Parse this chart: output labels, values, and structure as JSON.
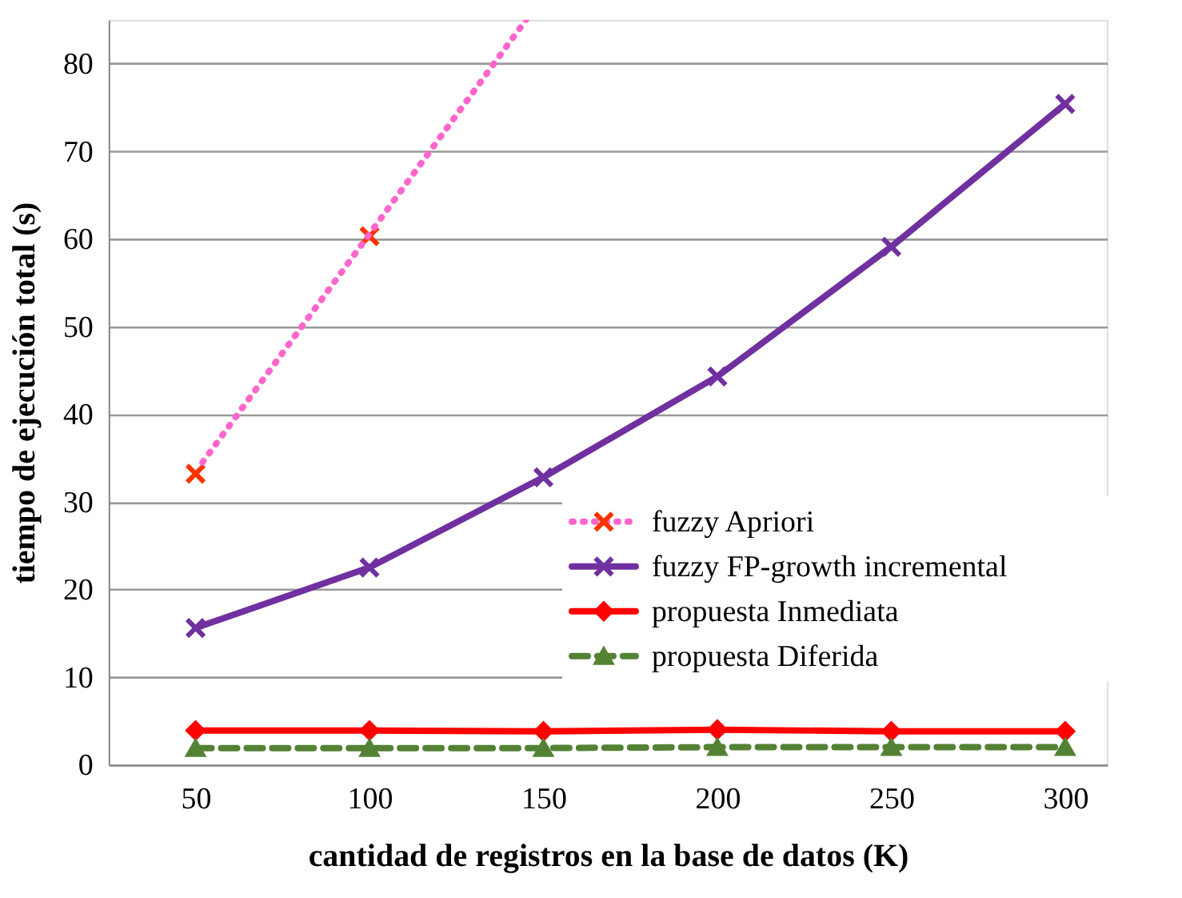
{
  "chart_data": {
    "type": "line",
    "xlabel": "cantidad de registros en la base de datos (K)",
    "ylabel": "tiempo de ejecución total (s)",
    "xlim": [
      25,
      312
    ],
    "xticks": [
      50,
      100,
      150,
      200,
      250,
      300
    ],
    "ylim": [
      0,
      85
    ],
    "yticks": [
      0,
      10,
      20,
      30,
      40,
      50,
      60,
      70,
      80
    ],
    "grid": "y",
    "legend": "right",
    "series": [
      {
        "name": "fuzzy Apriori",
        "type": "scatter",
        "marker": "cross",
        "color": "#ff3300",
        "x": [
          50,
          100
        ],
        "values": [
          33.2,
          60.3
        ]
      },
      {
        "line_style": "dotted",
        "color": "#ff66cc",
        "x": [
          52,
          145
        ],
        "values": [
          34.5,
          85
        ]
      },
      {
        "name": "fuzzy FP-growth incremental",
        "marker": "cross",
        "line_style": "solid",
        "color": "#7030a0",
        "x": [
          50,
          100,
          150,
          200,
          250,
          300
        ],
        "values": [
          15.6,
          22.5,
          32.8,
          44.3,
          59.1,
          75.4
        ]
      },
      {
        "name": "propuesta Inmediata",
        "marker": "diamond",
        "line_style": "solid",
        "color": "#ff0000",
        "x": [
          50,
          100,
          150,
          200,
          250,
          300
        ],
        "values": [
          3.9,
          3.9,
          3.8,
          4.0,
          3.8,
          3.8
        ]
      },
      {
        "name": "propuesta Diferida",
        "marker": "triangle",
        "line_style": "dashed",
        "color": "#548235",
        "x": [
          50,
          100,
          150,
          200,
          250,
          300
        ],
        "values": [
          1.9,
          1.9,
          1.9,
          2.0,
          2.0,
          2.0
        ]
      }
    ]
  }
}
